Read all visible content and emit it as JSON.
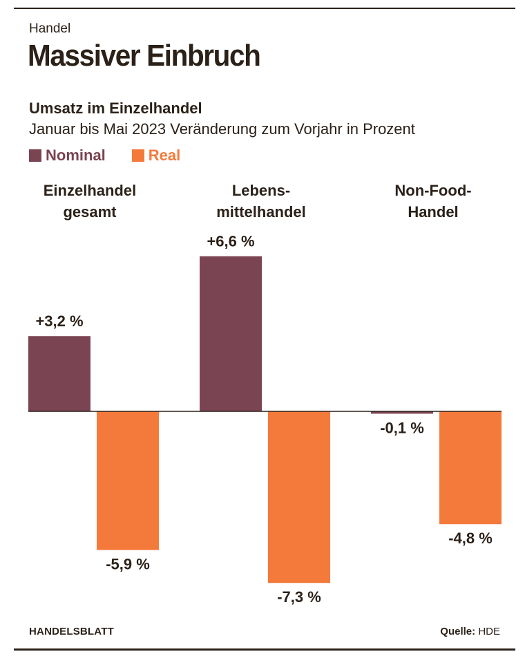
{
  "kicker": "Handel",
  "headline": "Massiver Einbruch",
  "colors": {
    "nominal": "#7a4452",
    "real": "#f47a3c",
    "text": "#2b2118"
  },
  "footer": {
    "brand": "HANDELSBLATT",
    "source_label": "Quelle:",
    "source_value": "HDE"
  },
  "chart_data": {
    "type": "bar",
    "title": "Umsatz im Einzelhandel",
    "subtitle": "Januar bis Mai 2023 Veränderung zum Vorjahr in Prozent",
    "categories": [
      [
        "Einzelhandel",
        "gesamt"
      ],
      [
        "Lebens-",
        "mittelhandel"
      ],
      [
        "Non-Food-",
        "Handel"
      ]
    ],
    "series": [
      {
        "name": "Nominal",
        "values": [
          3.2,
          6.6,
          -0.1
        ],
        "labels": [
          "+3,2 %",
          "+6,6 %",
          "-0,1 %"
        ]
      },
      {
        "name": "Real",
        "values": [
          -5.9,
          -7.3,
          -4.8
        ],
        "labels": [
          "-5,9 %",
          "-7,3 %",
          "-4,8 %"
        ]
      }
    ],
    "legend_position": "top-left",
    "grid": false
  }
}
